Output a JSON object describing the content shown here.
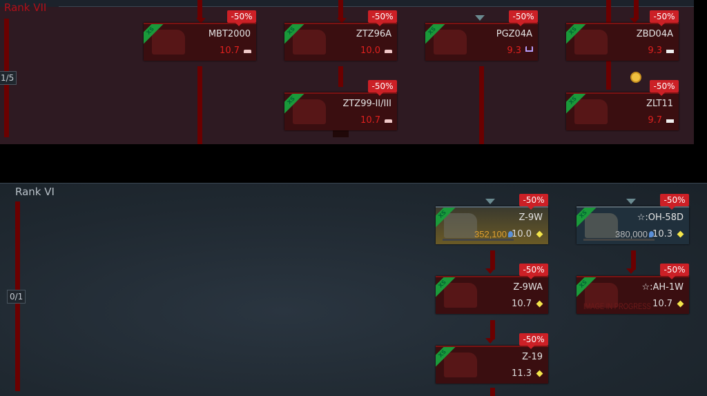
{
  "ranks": [
    {
      "label": "Rank VII",
      "counter": "1/5"
    },
    {
      "label": "Rank VI",
      "counter": "0/1"
    }
  ],
  "discount_label": "-50%",
  "premium_tag": "XS",
  "vehicles": [
    {
      "name": "MBT2000",
      "br": "10.7",
      "type": "tank-icon"
    },
    {
      "name": "ZTZ96A",
      "br": "10.0",
      "type": "tank-icon"
    },
    {
      "name": "PGZ04A",
      "br": "9.3",
      "type": "spaa-icon"
    },
    {
      "name": "ZBD04A",
      "br": "9.3",
      "type": "light-tank-icon"
    },
    {
      "name": "ZTZ99-II/III",
      "br": "10.7",
      "type": "tank-icon"
    },
    {
      "name": "ZLT11",
      "br": "9.7",
      "type": "light-tank-icon"
    },
    {
      "name": "Z-9W",
      "br": "10.0",
      "type": "helicopter-icon",
      "research_points": "352,100",
      "research_progress": 0
    },
    {
      "name": "☆:OH-58D",
      "br": "10.3",
      "type": "helicopter-icon",
      "research_points": "380,000",
      "research_progress": 0
    },
    {
      "name": "Z-9WA",
      "br": "10.7",
      "type": "helicopter-icon"
    },
    {
      "name": "☆:AH-1W",
      "br": "10.7",
      "type": "helicopter-icon",
      "placeholder_image_text": "IMAGE IN PROGRESS"
    },
    {
      "name": "Z-19",
      "br": "11.3",
      "type": "helicopter-icon"
    }
  ],
  "colors": {
    "discount": "#cc2026",
    "br_locked": "#e0201e",
    "premium": "#1a9a3a",
    "line": "#6b0000"
  }
}
